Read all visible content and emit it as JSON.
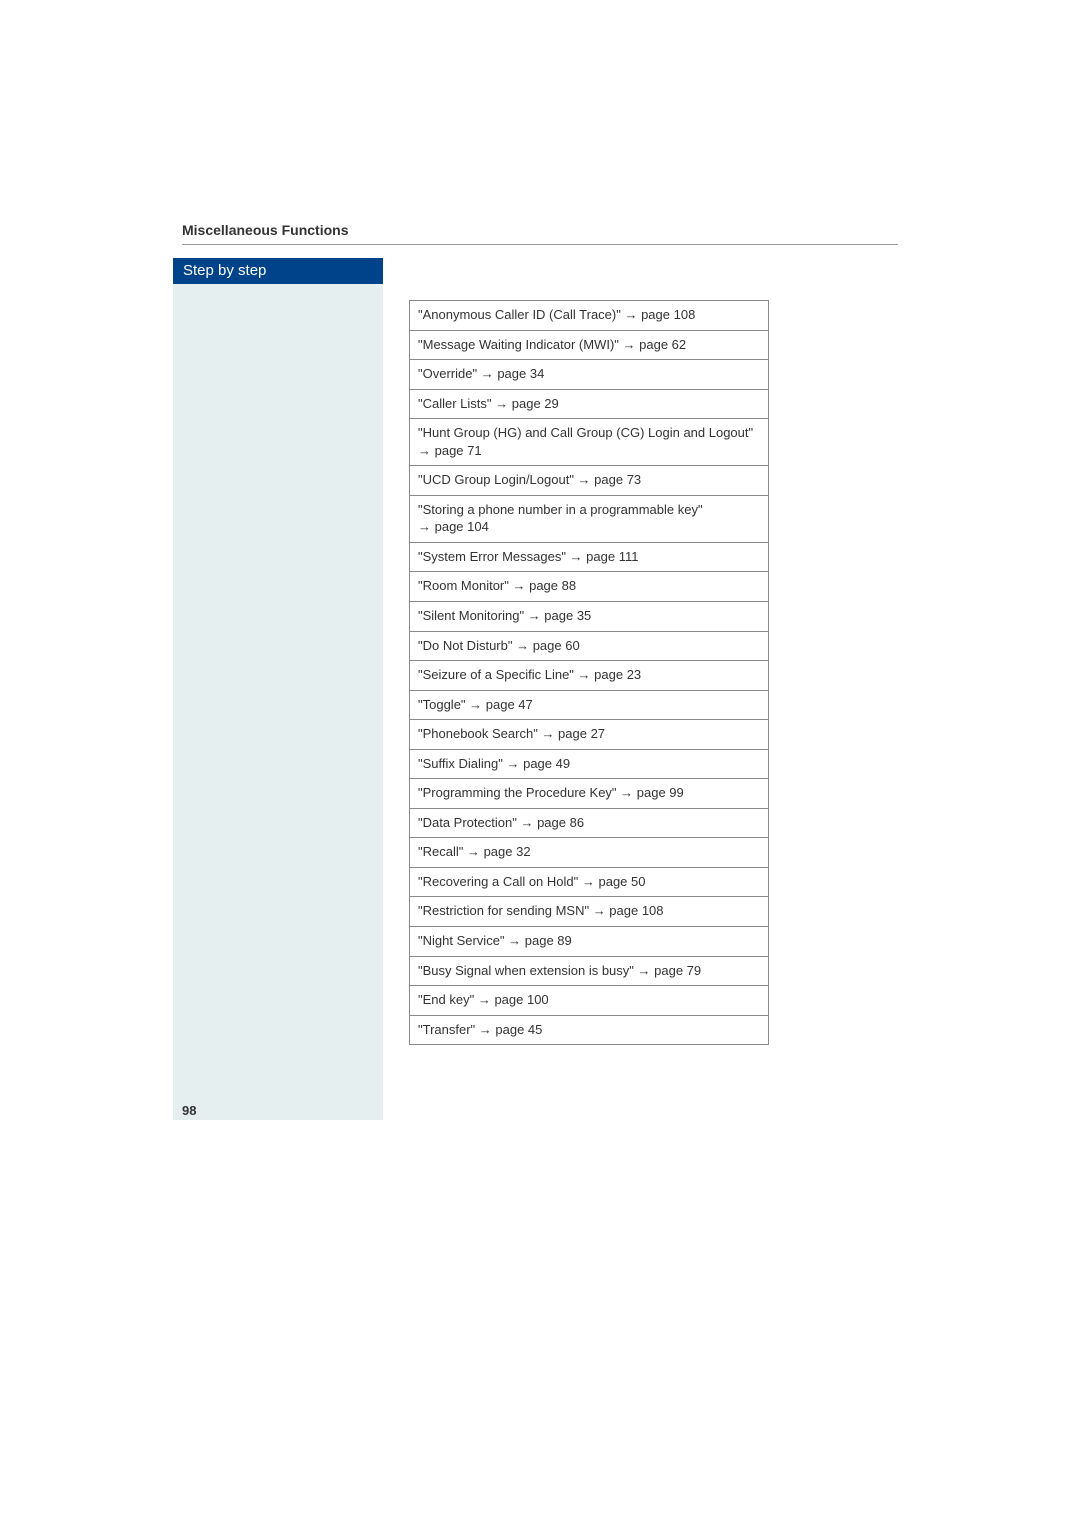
{
  "header": {
    "section_title": "Miscellaneous Functions"
  },
  "sidebar": {
    "title": "Step by step",
    "bg_color": "#e5efef",
    "header_bg": "#00438a",
    "header_text_color": "#ffffff"
  },
  "table": {
    "border_color": "#8a8a8a",
    "text_color": "#333333",
    "rows": [
      {
        "label": "\"Anonymous Caller ID (Call Trace)\"",
        "page": "page 108"
      },
      {
        "label": "\"Message Waiting Indicator (MWI)\"",
        "page": "page 62"
      },
      {
        "label": "\"Override\"",
        "page": "page 34"
      },
      {
        "label": "\"Caller Lists\"",
        "page": "page 29"
      },
      {
        "label": "\"Hunt Group (HG) and Call Group (CG) Login and Logout\"",
        "page": "page 71"
      },
      {
        "label": "\"UCD Group Login/Logout\"",
        "page": "page 73"
      },
      {
        "label": "\"Storing a phone number in a programmable key\"",
        "page": "page 104",
        "break_before_arrow": true
      },
      {
        "label": "\"System Error Messages\"",
        "page": "page 111"
      },
      {
        "label": "\"Room Monitor\"",
        "page": "page 88"
      },
      {
        "label": "\"Silent Monitoring\"",
        "page": "page 35"
      },
      {
        "label": "\"Do Not Disturb\"",
        "page": "page 60"
      },
      {
        "label": "\"Seizure of a Specific Line\"",
        "page": "page 23"
      },
      {
        "label": "\"Toggle\"",
        "page": "page 47"
      },
      {
        "label": "\"Phonebook Search\"",
        "page": "page 27"
      },
      {
        "label": "\"Suffix Dialing\"",
        "page": "page 49"
      },
      {
        "label": "\"Programming the Procedure Key\"",
        "page": "page 99"
      },
      {
        "label": "\"Data Protection\"",
        "page": "page 86"
      },
      {
        "label": "\"Recall\"",
        "page": "page 32"
      },
      {
        "label": "\"Recovering a Call on Hold\"",
        "page": "page 50"
      },
      {
        "label": "\"Restriction for sending MSN\"",
        "page": "page 108"
      },
      {
        "label": "\"Night Service\"",
        "page": "page 89"
      },
      {
        "label": "\"Busy Signal when extension is busy\"",
        "page": "page 79"
      },
      {
        "label": "\"End key\"",
        "page": "page 100"
      },
      {
        "label": "\"Transfer\"",
        "page": "page 45"
      }
    ]
  },
  "footer": {
    "page_number": "98"
  },
  "glyphs": {
    "arrow": "→"
  }
}
